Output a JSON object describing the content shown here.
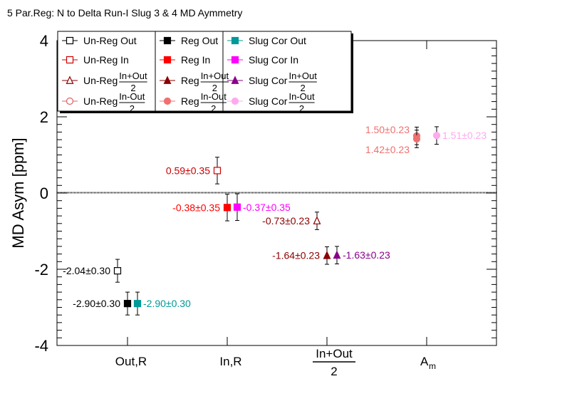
{
  "chart_data": {
    "type": "scatter",
    "title": "5 Par.Reg: N to Delta Run-I Slug 3 & 4 MD Aymmetry",
    "ylabel": "MD Asym [ppm]",
    "ylim": [
      -4,
      4
    ],
    "yticks": [
      "4",
      "2",
      "0",
      "-2",
      "-4"
    ],
    "categories": [
      {
        "id": "out",
        "label": "Out,R"
      },
      {
        "id": "in",
        "label": "In,R"
      },
      {
        "id": "sum",
        "numerator": "In+Out",
        "denominator": "2"
      },
      {
        "id": "am",
        "label": "A",
        "subscript": "m"
      }
    ],
    "legend_position": "top-left",
    "series": [
      {
        "name": "Un-Reg Out",
        "marker": "square-open",
        "color": "#000000",
        "points": [
          {
            "x": 0,
            "offset": -1,
            "y": -2.04,
            "err": 0.3,
            "label": "-2.04±0.30",
            "label_side": "left"
          }
        ]
      },
      {
        "name": "Un-Reg In",
        "marker": "square-open",
        "color": "#cc0000",
        "points": [
          {
            "x": 1,
            "offset": -1,
            "y": 0.59,
            "err": 0.35,
            "label": "0.59±0.35",
            "label_side": "left"
          }
        ]
      },
      {
        "name": "Un-Reg",
        "frac": [
          "In+Out",
          "2"
        ],
        "marker": "triangle-open",
        "color": "#8b0000",
        "points": [
          {
            "x": 2,
            "offset": -1,
            "y": -0.73,
            "err": 0.23,
            "label": "-0.73±0.23",
            "label_side": "left"
          }
        ]
      },
      {
        "name": "Un-Reg",
        "frac": [
          "In-Out",
          "2"
        ],
        "marker": "circle-open",
        "color": "#e06060",
        "points": []
      },
      {
        "name": "Reg Out",
        "marker": "square",
        "color": "#000000",
        "points": [
          {
            "x": 0,
            "offset": 0,
            "y": -2.9,
            "err": 0.3,
            "label": "-2.90±0.30",
            "label_side": "left"
          }
        ]
      },
      {
        "name": "Reg In",
        "marker": "square",
        "color": "#ff0000",
        "points": [
          {
            "x": 1,
            "offset": 0,
            "y": -0.38,
            "err": 0.35,
            "label": "-0.38±0.35",
            "label_side": "left"
          }
        ]
      },
      {
        "name": "Reg",
        "frac": [
          "In+Out",
          "2"
        ],
        "marker": "triangle",
        "color": "#8b0000",
        "points": [
          {
            "x": 2,
            "offset": 0,
            "y": -1.64,
            "err": 0.23,
            "label": "-1.64±0.23",
            "label_side": "left"
          }
        ]
      },
      {
        "name": "Reg",
        "frac": [
          "In-Out",
          "2"
        ],
        "marker": "circle",
        "color": "#f07070",
        "points": [
          {
            "x": 3,
            "offset": -1,
            "y": 1.5,
            "err": 0.23,
            "label": "1.50±0.23",
            "label_side": "left-upper"
          },
          {
            "x": 3,
            "offset": -1,
            "y": 1.42,
            "err": 0.23,
            "label": "1.42±0.23",
            "label_side": "left-lower"
          }
        ]
      },
      {
        "name": "Slug Cor Out",
        "marker": "square",
        "color": "#009999",
        "points": [
          {
            "x": 0,
            "offset": 1,
            "y": -2.9,
            "err": 0.3,
            "label": "-2.90±0.30",
            "label_side": "right"
          }
        ]
      },
      {
        "name": "Slug Cor In",
        "marker": "square",
        "color": "#ff00ff",
        "points": [
          {
            "x": 1,
            "offset": 1,
            "y": -0.37,
            "err": 0.35,
            "label": "-0.37±0.35",
            "label_side": "right"
          }
        ]
      },
      {
        "name": "Slug Cor",
        "frac": [
          "In+Out",
          "2"
        ],
        "marker": "triangle",
        "color": "#880088",
        "points": [
          {
            "x": 2,
            "offset": 1,
            "y": -1.63,
            "err": 0.23,
            "label": "-1.63±0.23",
            "label_side": "right"
          }
        ]
      },
      {
        "name": "Slug Cor",
        "frac": [
          "In-Out",
          "2"
        ],
        "marker": "circle",
        "color": "#ffaaee",
        "points": [
          {
            "x": 3,
            "offset": 1,
            "y": 1.51,
            "err": 0.23,
            "label": "1.51±0.23",
            "label_side": "right"
          }
        ]
      }
    ]
  }
}
